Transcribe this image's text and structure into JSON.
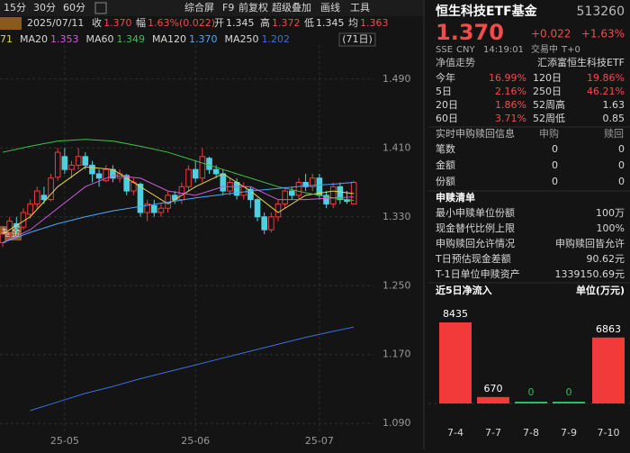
{
  "toolbar": {
    "items": [
      "15分",
      "30分",
      "60分",
      "综合屏",
      "F9",
      "前复权",
      "超级叠加",
      "画线",
      "工具"
    ]
  },
  "quote_bar": {
    "date": "2025/07/11",
    "close_label": "收",
    "close": "1.370",
    "change_label": "幅",
    "change": "1.63%(0.022)",
    "open_label": "开",
    "open": "1.345",
    "high_label": "高",
    "high": "1.372",
    "low_label": "低",
    "low": "1.345",
    "avg_label": "均",
    "avg": "1.363"
  },
  "range_label": "(71日)",
  "chart_tag": "基金",
  "chart_data": [
    {
      "type": "candlestick",
      "up_color": "#f23a3a",
      "down_color": "#4fd0e0",
      "ohlc": [
        [
          1.3,
          1.315,
          1.295,
          1.31
        ],
        [
          1.312,
          1.33,
          1.305,
          1.325
        ],
        [
          1.322,
          1.33,
          1.31,
          1.318
        ],
        [
          1.318,
          1.34,
          1.315,
          1.335
        ],
        [
          1.333,
          1.35,
          1.328,
          1.345
        ],
        [
          1.345,
          1.365,
          1.34,
          1.36
        ],
        [
          1.355,
          1.365,
          1.345,
          1.35
        ],
        [
          1.35,
          1.38,
          1.348,
          1.375
        ],
        [
          1.376,
          1.41,
          1.372,
          1.405
        ],
        [
          1.4,
          1.41,
          1.38,
          1.385
        ],
        [
          1.385,
          1.395,
          1.375,
          1.39
        ],
        [
          1.39,
          1.41,
          1.385,
          1.4
        ],
        [
          1.4,
          1.405,
          1.385,
          1.39
        ],
        [
          1.39,
          1.395,
          1.37,
          1.38
        ],
        [
          1.38,
          1.385,
          1.365,
          1.375
        ],
        [
          1.372,
          1.39,
          1.37,
          1.385
        ],
        [
          1.385,
          1.39,
          1.37,
          1.375
        ],
        [
          1.375,
          1.385,
          1.37,
          1.38
        ],
        [
          1.378,
          1.38,
          1.355,
          1.36
        ],
        [
          1.36,
          1.375,
          1.355,
          1.37
        ],
        [
          1.368,
          1.37,
          1.33,
          1.335
        ],
        [
          1.335,
          1.35,
          1.325,
          1.345
        ],
        [
          1.343,
          1.35,
          1.33,
          1.335
        ],
        [
          1.335,
          1.345,
          1.33,
          1.34
        ],
        [
          1.34,
          1.36,
          1.335,
          1.355
        ],
        [
          1.355,
          1.36,
          1.345,
          1.35
        ],
        [
          1.35,
          1.37,
          1.345,
          1.365
        ],
        [
          1.365,
          1.39,
          1.36,
          1.385
        ],
        [
          1.385,
          1.395,
          1.37,
          1.375
        ],
        [
          1.375,
          1.41,
          1.37,
          1.4
        ],
        [
          1.398,
          1.4,
          1.38,
          1.385
        ],
        [
          1.385,
          1.39,
          1.375,
          1.38
        ],
        [
          1.38,
          1.385,
          1.355,
          1.36
        ],
        [
          1.36,
          1.375,
          1.355,
          1.37
        ],
        [
          1.37,
          1.375,
          1.35,
          1.355
        ],
        [
          1.355,
          1.37,
          1.35,
          1.365
        ],
        [
          1.362,
          1.365,
          1.34,
          1.35
        ],
        [
          1.35,
          1.352,
          1.325,
          1.33
        ],
        [
          1.33,
          1.335,
          1.31,
          1.315
        ],
        [
          1.315,
          1.335,
          1.312,
          1.33
        ],
        [
          1.33,
          1.35,
          1.325,
          1.345
        ],
        [
          1.345,
          1.365,
          1.34,
          1.36
        ],
        [
          1.36,
          1.365,
          1.35,
          1.355
        ],
        [
          1.355,
          1.375,
          1.35,
          1.37
        ],
        [
          1.37,
          1.38,
          1.36,
          1.365
        ],
        [
          1.365,
          1.38,
          1.36,
          1.375
        ],
        [
          1.375,
          1.38,
          1.35,
          1.355
        ],
        [
          1.355,
          1.36,
          1.34,
          1.345
        ],
        [
          1.345,
          1.37,
          1.34,
          1.365
        ],
        [
          1.365,
          1.37,
          1.345,
          1.35
        ],
        [
          1.35,
          1.36,
          1.345,
          1.348
        ],
        [
          1.345,
          1.372,
          1.345,
          1.37
        ]
      ],
      "x": [
        0,
        4,
        8,
        12,
        16,
        20,
        24,
        28,
        32,
        36,
        40,
        44,
        48,
        51
      ],
      "series": [
        {
          "readout": "71",
          "color": "#e8d24a",
          "values": [
            1.31,
            1.33,
            1.365,
            1.388,
            1.385,
            1.365,
            1.345,
            1.365,
            1.38,
            1.36,
            1.335,
            1.355,
            1.36,
            1.357
          ]
        },
        {
          "name": "MA20",
          "readout": "1.353",
          "color": "#d05ad8",
          "values": [
            1.3,
            1.315,
            1.34,
            1.365,
            1.378,
            1.375,
            1.36,
            1.355,
            1.365,
            1.365,
            1.35,
            1.35,
            1.352,
            1.353
          ]
        },
        {
          "name": "MA60",
          "readout": "1.349",
          "color": "#3cc24a",
          "values": [
            1.405,
            1.412,
            1.418,
            1.42,
            1.418,
            1.412,
            1.405,
            1.395,
            1.385,
            1.375,
            1.365,
            1.358,
            1.352,
            1.349
          ]
        },
        {
          "name": "MA120",
          "readout": "1.370",
          "color": "#4aa8ff",
          "values": [
            1.3,
            1.312,
            1.322,
            1.33,
            1.337,
            1.342,
            1.347,
            1.352,
            1.356,
            1.36,
            1.363,
            1.366,
            1.368,
            1.37
          ]
        },
        {
          "name": "MA250",
          "readout": "1.202",
          "color": "#3a6fe0",
          "values": [
            null,
            1.105,
            1.115,
            1.125,
            1.133,
            1.142,
            1.15,
            1.158,
            1.166,
            1.174,
            1.182,
            1.19,
            1.197,
            1.202
          ]
        }
      ],
      "ylim": [
        1.085,
        1.54
      ],
      "yticks": [
        {
          "value": 1.49,
          "label": "1.490"
        },
        {
          "value": 1.41,
          "label": "1.410"
        },
        {
          "value": 1.33,
          "label": "1.330"
        },
        {
          "value": 1.25,
          "label": "1.250"
        },
        {
          "value": 1.17,
          "label": "1.170"
        },
        {
          "value": 1.09,
          "label": "1.090"
        }
      ],
      "xticks": [
        {
          "value": 9,
          "label": "25-05"
        },
        {
          "value": 28,
          "label": "25-06"
        },
        {
          "value": 46,
          "label": "25-07"
        }
      ],
      "grid": true
    },
    {
      "type": "bar",
      "title": "近5日净流入",
      "unit": "单位(万元)",
      "categories": [
        "7-4",
        "7-7",
        "7-8",
        "7-9",
        "7-10"
      ],
      "values": [
        8435,
        670,
        0,
        0,
        6863
      ],
      "color": "#f23a3a",
      "zero_color": "#2fbf5a"
    }
  ],
  "panel": {
    "name": "恒生科技ETF基金",
    "code": "513260",
    "price": "1.370",
    "change": "+0.022",
    "change_pct": "+1.63%",
    "status": [
      "SSE",
      "CNY",
      "14:19:01",
      "交易中",
      "T+0"
    ],
    "nav": {
      "title": "净值走势",
      "fund": "汇添富恒生科技ETF",
      "rows": [
        [
          "今年",
          "16.99%",
          "120日",
          "19.86%"
        ],
        [
          "5日",
          "2.16%",
          "250日",
          "46.21%"
        ],
        [
          "20日",
          "1.86%",
          "52周高",
          "1.63"
        ],
        [
          "60日",
          "3.71%",
          "52周低",
          "0.85"
        ]
      ]
    },
    "realtime": {
      "title": "实时申购赎回信息",
      "cols": [
        "申购",
        "赎回"
      ],
      "rows": [
        [
          "笔数",
          "0",
          "0"
        ],
        [
          "金额",
          "0",
          "0"
        ],
        [
          "份额",
          "0",
          "0"
        ]
      ]
    },
    "list": {
      "title": "申赎清单",
      "rows": [
        [
          "最小申赎单位份额",
          "100万"
        ],
        [
          "现金替代比例上限",
          "100%"
        ],
        [
          "申购赎回允许情况",
          "申购赎回皆允许"
        ],
        [
          "T日预估现金差额",
          "90.62元"
        ],
        [
          "T-1日单位申赎资产",
          "1339150.69元"
        ]
      ]
    }
  }
}
